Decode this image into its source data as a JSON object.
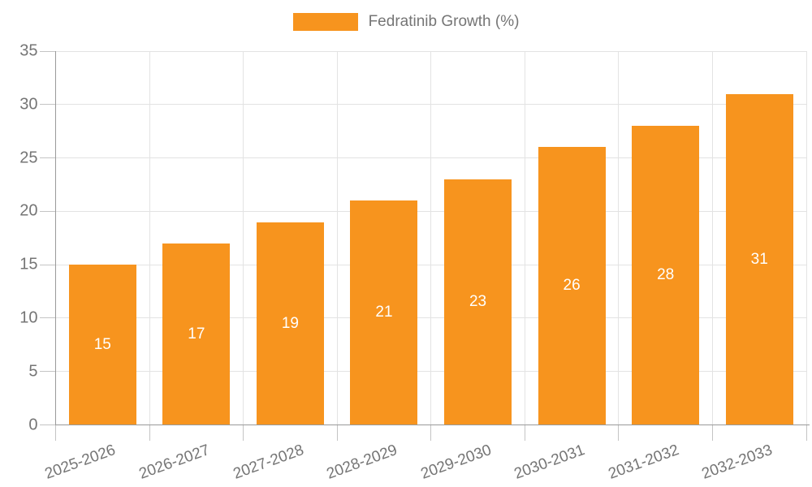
{
  "legend": {
    "label": "Fedratinib Growth (%)"
  },
  "chart_data": {
    "type": "bar",
    "title": "",
    "xlabel": "",
    "ylabel": "",
    "categories": [
      "2025-2026",
      "2026-2027",
      "2027-2028",
      "2028-2029",
      "2029-2030",
      "2030-2031",
      "2031-2032",
      "2032-2033"
    ],
    "series": [
      {
        "name": "Fedratinib Growth (%)",
        "values": [
          15,
          17,
          19,
          21,
          23,
          26,
          28,
          31
        ]
      }
    ],
    "bar_labels": [
      "15",
      "17",
      "19",
      "21",
      "23",
      "26",
      "28",
      "31"
    ],
    "ylim": [
      0,
      35
    ],
    "yticks": [
      0,
      5,
      10,
      15,
      20,
      25,
      30,
      35
    ],
    "grid": true,
    "legend_position": "top-center",
    "x_label_rotation_deg": -20,
    "colors": {
      "bar": "#f7941e",
      "bar_label": "#ffffff",
      "axis": "#9a9a9a",
      "grid": "#e3e3e3",
      "tick": "#c4c4c4",
      "text": "#757575",
      "background": "#ffffff"
    }
  }
}
